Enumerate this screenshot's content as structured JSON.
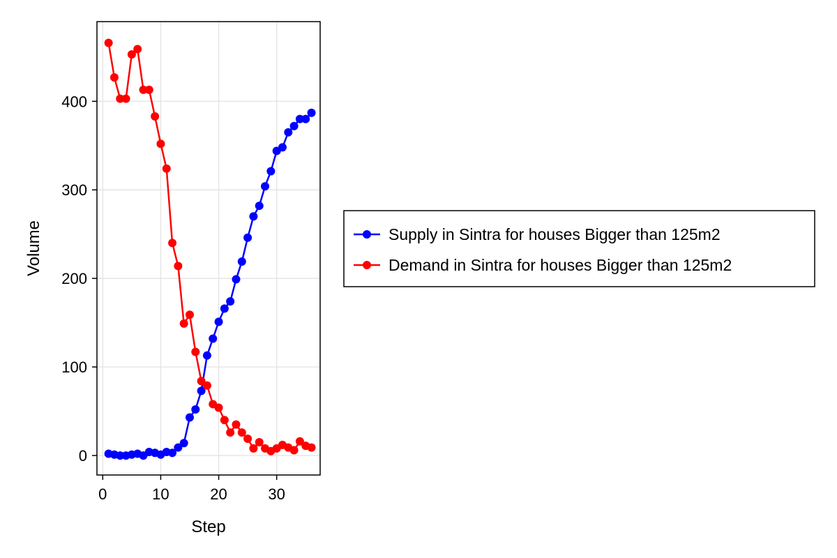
{
  "chart_data": {
    "type": "line",
    "title": "",
    "xlabel": "Step",
    "ylabel": "Volume",
    "xlim": [
      -1,
      37.5
    ],
    "ylim": [
      -22,
      490
    ],
    "xticks": [
      0,
      10,
      20,
      30
    ],
    "yticks": [
      0,
      100,
      200,
      300,
      400
    ],
    "xtick_labels": [
      "0",
      "10",
      "20",
      "30"
    ],
    "ytick_labels": [
      "0",
      "100",
      "200",
      "300",
      "400"
    ],
    "grid": true,
    "legend_position": "right",
    "x": [
      1,
      2,
      3,
      4,
      5,
      6,
      7,
      8,
      9,
      10,
      11,
      12,
      13,
      14,
      15,
      16,
      17,
      18,
      19,
      20,
      21,
      22,
      23,
      24,
      25,
      26,
      27,
      28,
      29,
      30,
      31,
      32,
      33,
      34,
      35,
      36
    ],
    "series": [
      {
        "name": "Supply in Sintra for houses Bigger than 125m2",
        "color": "#0000ff",
        "values": [
          2,
          1,
          0,
          0,
          1,
          2,
          0,
          4,
          3,
          1,
          4,
          3,
          9,
          14,
          43,
          52,
          73,
          113,
          132,
          151,
          166,
          174,
          199,
          219,
          246,
          270,
          282,
          304,
          321,
          344,
          348,
          365,
          372,
          380,
          380,
          387
        ]
      },
      {
        "name": "Demand in Sintra for houses Bigger than 125m2",
        "color": "#ff0000",
        "values": [
          466,
          427,
          403,
          403,
          453,
          459,
          413,
          413,
          383,
          352,
          324,
          240,
          214,
          149,
          159,
          117,
          84,
          79,
          58,
          54,
          40,
          26,
          35,
          26,
          19,
          8,
          15,
          8,
          5,
          8,
          12,
          9,
          6,
          16,
          11,
          9
        ]
      }
    ]
  }
}
